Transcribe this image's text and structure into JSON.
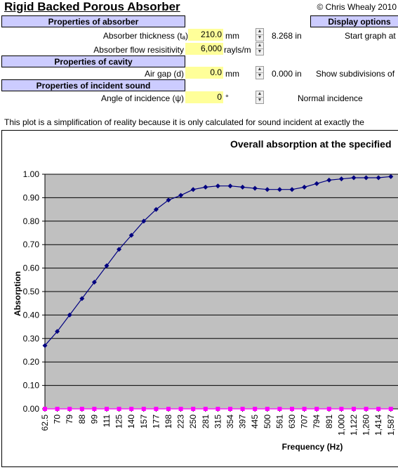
{
  "header": {
    "title": "Rigid Backed Porous Absorber",
    "copyright": "© Chris Whealy 2010"
  },
  "sections": {
    "absorber": "Properties of absorber",
    "cavity": "Properties of cavity",
    "incident": "Properties of incident sound",
    "display": "Display options"
  },
  "absorber": {
    "thickness_label": "Absorber thickness (tₐ)",
    "thickness_value": "210.0",
    "thickness_unit": "mm",
    "thickness_inches": "8.268 in",
    "flow_label": "Absorber flow resisitivity",
    "flow_value": "6,000",
    "flow_unit": "rayls/m"
  },
  "cavity": {
    "gap_label": "Air gap (d)",
    "gap_value": "0.0",
    "gap_unit": "mm",
    "gap_inches": "0.000 in"
  },
  "incident": {
    "angle_label": "Angle of incidence (ψ)",
    "angle_value": "0",
    "angle_unit": "°",
    "angle_note": "Normal incidence"
  },
  "display": {
    "start_graph": "Start graph at",
    "show_subdivisions": "Show subdivisions of"
  },
  "note_text": "This plot is a simplification of reality because it is only calculated for sound incident at exactly the",
  "chart_data": {
    "type": "line",
    "title": "Overall absorption at the specified",
    "xlabel": "Frequency (Hz)",
    "ylabel": "Absorption",
    "ylim": [
      0,
      1
    ],
    "ytick_labels": [
      "0.00",
      "0.10",
      "0.20",
      "0.30",
      "0.40",
      "0.50",
      "0.60",
      "0.70",
      "0.80",
      "0.90",
      "1.00"
    ],
    "categories": [
      "62.5",
      "70",
      "79",
      "88",
      "99",
      "111",
      "125",
      "140",
      "157",
      "177",
      "198",
      "223",
      "250",
      "281",
      "315",
      "354",
      "397",
      "445",
      "500",
      "561",
      "630",
      "707",
      "794",
      "891",
      "1,000",
      "1,122",
      "1,260",
      "1,414",
      "1,587"
    ],
    "grid": true,
    "plot_background": "#c0c0c0",
    "series": [
      {
        "color": "#000080",
        "marker": "diamond",
        "values": [
          0.27,
          0.33,
          0.4,
          0.47,
          0.54,
          0.61,
          0.68,
          0.74,
          0.8,
          0.85,
          0.89,
          0.91,
          0.935,
          0.945,
          0.95,
          0.95,
          0.945,
          0.94,
          0.935,
          0.935,
          0.935,
          0.945,
          0.96,
          0.975,
          0.98,
          0.985,
          0.985,
          0.985,
          0.99
        ]
      },
      {
        "color": "#ff00ff",
        "marker": "square",
        "values": [
          0,
          0,
          0,
          0,
          0,
          0,
          0,
          0,
          0,
          0,
          0,
          0,
          0,
          0,
          0,
          0,
          0,
          0,
          0,
          0,
          0,
          0,
          0,
          0,
          0,
          0,
          0,
          0,
          0
        ]
      }
    ]
  }
}
